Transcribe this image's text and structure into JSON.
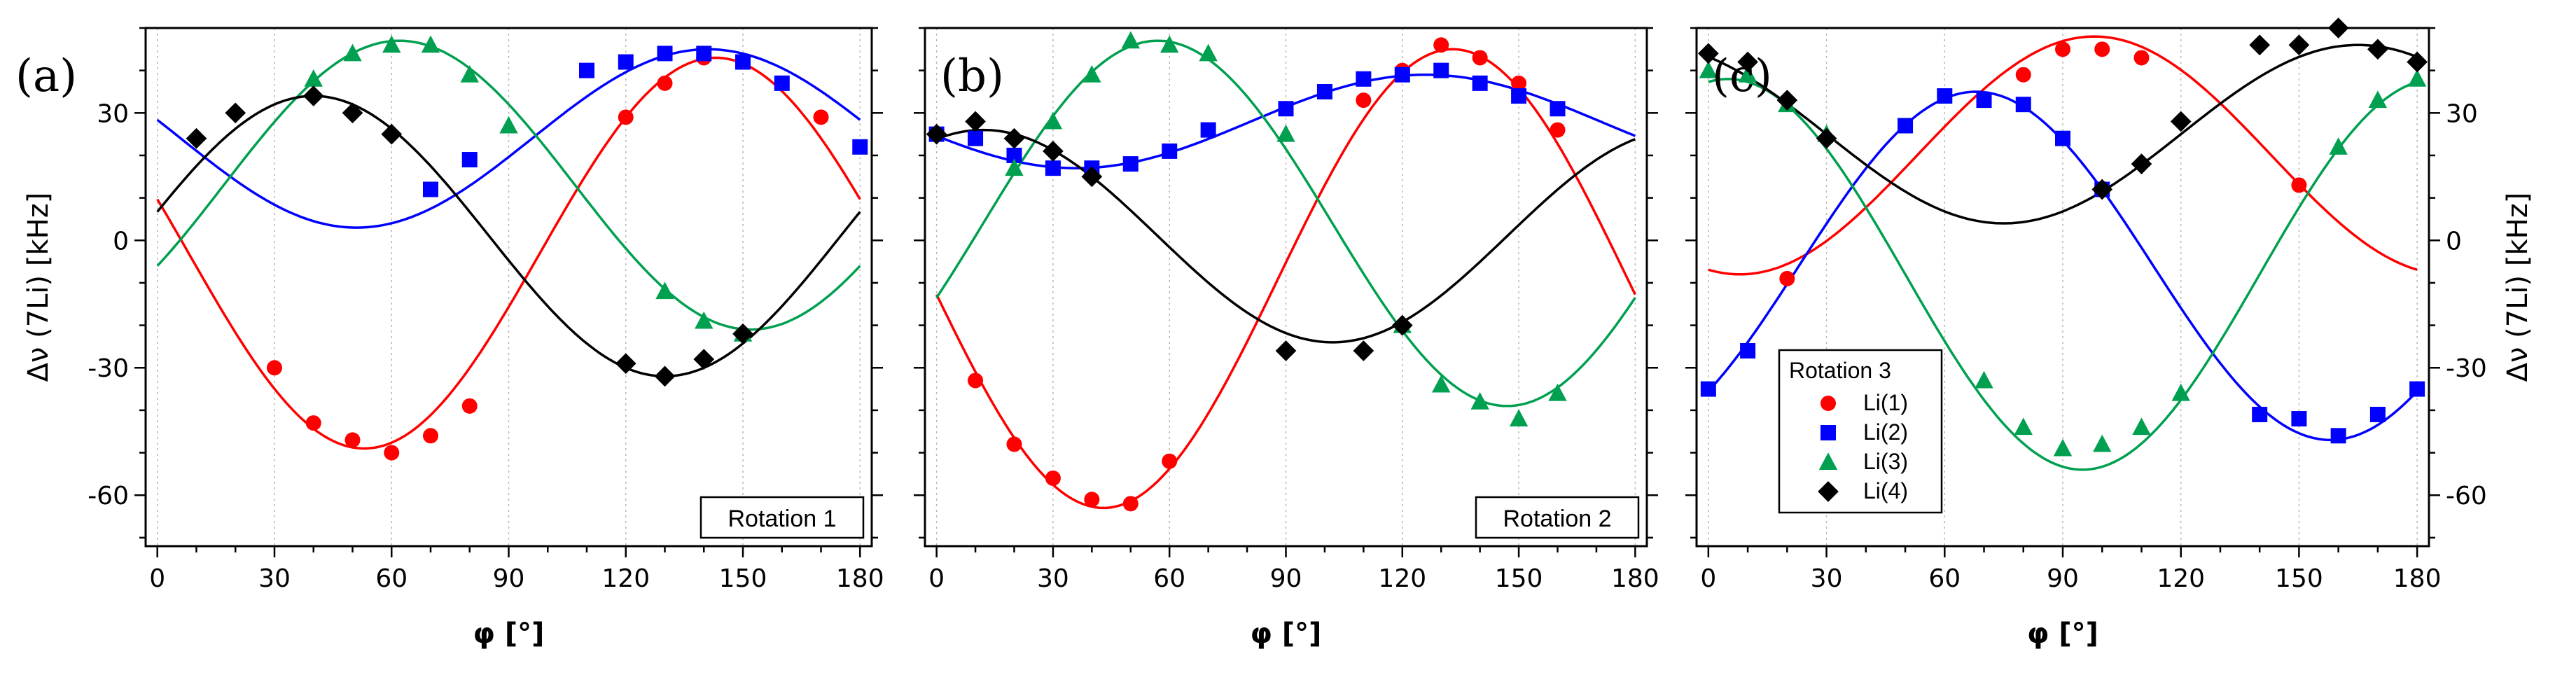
{
  "chart_data": [
    {
      "type": "scatter",
      "panel": "(a)",
      "annotation": "Rotation 1",
      "xlabel": "φ [°]",
      "ylabel": "Δν (7Li) [kHz]",
      "xlim": [
        -3,
        183
      ],
      "ylim": [
        -72,
        50
      ],
      "x_ticks": [
        0,
        30,
        60,
        90,
        120,
        150,
        180
      ],
      "y_ticks": [
        -60,
        -30,
        0,
        30
      ],
      "grid": "vertical dotted",
      "series": [
        {
          "name": "Li(1)",
          "color": "#ff0000",
          "marker": "circle",
          "x": [
            30,
            40,
            50,
            60,
            70,
            80,
            120,
            130,
            140,
            150,
            160,
            170
          ],
          "y": [
            -30,
            -43,
            -47,
            -50,
            -46,
            -39,
            29,
            37,
            43,
            42,
            37,
            29
          ],
          "fit": {
            "a": 46,
            "c": -3,
            "phi0": 143
          }
        },
        {
          "name": "Li(2)",
          "color": "#0000ff",
          "marker": "square",
          "x": [
            70,
            80,
            110,
            120,
            130,
            140,
            150,
            160,
            180
          ],
          "y": [
            12,
            19,
            40,
            42,
            44,
            44,
            42,
            37,
            22
          ],
          "fit": {
            "a": 21,
            "c": 24,
            "phi0": 141
          }
        },
        {
          "name": "Li(3)",
          "color": "#00a050",
          "marker": "triangle",
          "x": [
            40,
            50,
            60,
            70,
            80,
            90,
            130,
            140,
            150
          ],
          "y": [
            38,
            44,
            46,
            46,
            39,
            27,
            -12,
            -19,
            -22
          ],
          "fit": {
            "a": 34,
            "c": 13,
            "phi0": 62
          }
        },
        {
          "name": "Li(4)",
          "color": "#000000",
          "marker": "diamond",
          "x": [
            10,
            20,
            40,
            50,
            60,
            120,
            130,
            140,
            150
          ],
          "y": [
            24,
            30,
            34,
            30,
            25,
            -29,
            -32,
            -28,
            -22
          ],
          "fit": {
            "a": 33,
            "c": 1,
            "phi0": 40
          }
        }
      ]
    },
    {
      "type": "scatter",
      "panel": "(b)",
      "annotation": "Rotation 2",
      "xlabel": "φ [°]",
      "ylabel": "",
      "xlim": [
        -3,
        183
      ],
      "ylim": [
        -72,
        50
      ],
      "x_ticks": [
        0,
        30,
        60,
        90,
        120,
        150,
        180
      ],
      "y_ticks": [
        -60,
        -30,
        0,
        30
      ],
      "grid": "vertical dotted",
      "series": [
        {
          "name": "Li(1)",
          "color": "#ff0000",
          "marker": "circle",
          "x": [
            10,
            20,
            30,
            40,
            50,
            60,
            110,
            120,
            130,
            140,
            150,
            160
          ],
          "y": [
            -33,
            -48,
            -56,
            -61,
            -62,
            -52,
            33,
            40,
            46,
            43,
            37,
            26
          ],
          "fit": {
            "a": 54,
            "c": -9,
            "phi0": 133
          }
        },
        {
          "name": "Li(2)",
          "color": "#0000ff",
          "marker": "square",
          "x": [
            0,
            10,
            20,
            30,
            40,
            50,
            60,
            70,
            90,
            100,
            110,
            120,
            130,
            140,
            150,
            160
          ],
          "y": [
            25,
            24,
            20,
            17,
            17,
            18,
            21,
            26,
            31,
            35,
            38,
            39,
            40,
            37,
            34,
            31
          ],
          "fit": {
            "a": 11,
            "c": 28,
            "phi0": 126
          }
        },
        {
          "name": "Li(3)",
          "color": "#00a050",
          "marker": "triangle",
          "x": [
            20,
            30,
            40,
            50,
            60,
            70,
            90,
            120,
            130,
            140,
            150,
            160
          ],
          "y": [
            17,
            28,
            39,
            47,
            46,
            44,
            25,
            -20,
            -34,
            -38,
            -42,
            -36
          ],
          "fit": {
            "a": 43,
            "c": 4,
            "phi0": 57
          }
        },
        {
          "name": "Li(4)",
          "color": "#000000",
          "marker": "diamond",
          "x": [
            0,
            10,
            20,
            30,
            40,
            90,
            110,
            120
          ],
          "y": [
            25,
            28,
            24,
            21,
            15,
            -26,
            -26,
            -20
          ],
          "fit": {
            "a": 25,
            "c": 1,
            "phi0": 12
          }
        }
      ]
    },
    {
      "type": "scatter",
      "panel": "(c)",
      "annotation": "",
      "xlabel": "φ [°]",
      "ylabel": "Δν (7Li) [kHz]",
      "xlim": [
        -3,
        183
      ],
      "ylim": [
        -72,
        50
      ],
      "x_ticks": [
        0,
        30,
        60,
        90,
        120,
        150,
        180
      ],
      "y_ticks": [
        -60,
        -30,
        0,
        30
      ],
      "grid": "vertical dotted",
      "legend": {
        "title": "Rotation 3",
        "position": "lower-left",
        "entries": [
          "Li(1)",
          "Li(2)",
          "Li(3)",
          "Li(4)"
        ]
      },
      "series": [
        {
          "name": "Li(1)",
          "color": "#ff0000",
          "marker": "circle",
          "x": [
            20,
            80,
            90,
            100,
            110,
            150
          ],
          "y": [
            -9,
            39,
            45,
            45,
            43,
            13
          ],
          "fit": {
            "a": 28,
            "c": 20,
            "phi0": 98
          }
        },
        {
          "name": "Li(2)",
          "color": "#0000ff",
          "marker": "square",
          "x": [
            0,
            10,
            50,
            60,
            70,
            80,
            90,
            100,
            140,
            150,
            160,
            170,
            180
          ],
          "y": [
            -35,
            -26,
            27,
            34,
            33,
            32,
            24,
            12,
            -41,
            -42,
            -46,
            -41,
            -35
          ],
          "fit": {
            "a": 41,
            "c": -6,
            "phi0": 68
          }
        },
        {
          "name": "Li(3)",
          "color": "#00a050",
          "marker": "triangle",
          "x": [
            0,
            10,
            20,
            30,
            70,
            80,
            90,
            100,
            110,
            120,
            160,
            170,
            180
          ],
          "y": [
            40,
            39,
            32,
            25,
            -33,
            -44,
            -49,
            -48,
            -44,
            -36,
            22,
            33,
            38
          ],
          "fit": {
            "a": 46,
            "c": -8,
            "phi0": 5
          }
        },
        {
          "name": "Li(4)",
          "color": "#000000",
          "marker": "diamond",
          "x": [
            0,
            10,
            20,
            30,
            100,
            110,
            120,
            140,
            150,
            160,
            170,
            180
          ],
          "y": [
            44,
            42,
            33,
            24,
            12,
            18,
            28,
            46,
            46,
            50,
            45,
            42
          ],
          "fit": {
            "a": 21,
            "c": 25,
            "phi0": 165
          }
        }
      ]
    }
  ]
}
